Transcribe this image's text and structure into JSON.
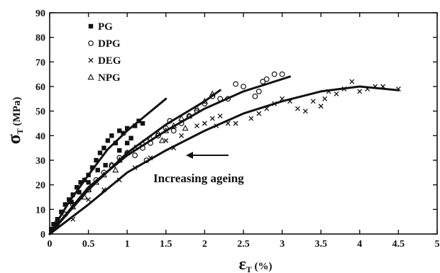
{
  "chart_data": {
    "type": "scatter",
    "xlabel_symbol": "ε",
    "xlabel_sub": "T",
    "xlabel_unit": "(%)",
    "ylabel_symbol": "σ",
    "ylabel_sub": "T",
    "ylabel_unit": "(MPa)",
    "xlim": [
      0,
      5
    ],
    "ylim": [
      0,
      90
    ],
    "xticks": [
      "0",
      "0.5",
      "1",
      "1.5",
      "2",
      "2.5",
      "3",
      "3.5",
      "4",
      "4.5",
      "5"
    ],
    "yticks": [
      "0",
      "10",
      "20",
      "30",
      "40",
      "50",
      "60",
      "70",
      "80",
      "90"
    ],
    "grid": false,
    "legend_position": "top-left",
    "annotation": {
      "text": "Increasing ageing",
      "arrow": "left"
    },
    "series": [
      {
        "name": "PG",
        "marker": "filled-square",
        "points": [
          [
            0.02,
            2
          ],
          [
            0.05,
            4
          ],
          [
            0.1,
            6
          ],
          [
            0.15,
            9
          ],
          [
            0.2,
            12
          ],
          [
            0.25,
            14
          ],
          [
            0.3,
            16
          ],
          [
            0.35,
            19
          ],
          [
            0.4,
            21
          ],
          [
            0.45,
            22
          ],
          [
            0.5,
            24
          ],
          [
            0.55,
            27
          ],
          [
            0.6,
            30
          ],
          [
            0.65,
            33
          ],
          [
            0.7,
            35
          ],
          [
            0.75,
            38
          ],
          [
            0.8,
            40
          ],
          [
            0.85,
            37
          ],
          [
            0.9,
            42
          ],
          [
            0.95,
            41
          ],
          [
            1.0,
            43
          ],
          [
            1.05,
            39
          ],
          [
            1.1,
            44
          ],
          [
            1.15,
            46
          ],
          [
            1.2,
            45
          ],
          [
            0.72,
            28
          ],
          [
            0.62,
            26
          ],
          [
            0.5,
            21
          ],
          [
            0.38,
            17
          ],
          [
            0.28,
            13
          ],
          [
            0.9,
            34
          ],
          [
            1.0,
            37
          ]
        ],
        "fit": [
          [
            0,
            0
          ],
          [
            0.25,
            13
          ],
          [
            0.5,
            24
          ],
          [
            0.75,
            34.5
          ],
          [
            1.0,
            42
          ],
          [
            1.25,
            48.5
          ],
          [
            1.5,
            55
          ]
        ]
      },
      {
        "name": "DPG",
        "marker": "open-circle",
        "points": [
          [
            0.1,
            5
          ],
          [
            0.2,
            8
          ],
          [
            0.3,
            12
          ],
          [
            0.5,
            18
          ],
          [
            0.6,
            22
          ],
          [
            0.7,
            25
          ],
          [
            0.8,
            28
          ],
          [
            0.9,
            31
          ],
          [
            1.0,
            33
          ],
          [
            1.1,
            32
          ],
          [
            1.2,
            35
          ],
          [
            1.3,
            37
          ],
          [
            1.4,
            40
          ],
          [
            1.5,
            43
          ],
          [
            1.6,
            42
          ],
          [
            1.7,
            45
          ],
          [
            1.8,
            48
          ],
          [
            1.9,
            50
          ],
          [
            2.0,
            53
          ],
          [
            2.1,
            56
          ],
          [
            2.2,
            55
          ],
          [
            2.3,
            55
          ],
          [
            2.4,
            61
          ],
          [
            2.5,
            60
          ],
          [
            2.7,
            58
          ],
          [
            2.75,
            62
          ],
          [
            2.8,
            63
          ],
          [
            2.9,
            65
          ],
          [
            3.0,
            65
          ],
          [
            1.25,
            30
          ],
          [
            1.55,
            46
          ],
          [
            2.65,
            56
          ]
        ],
        "fit": [
          [
            0,
            0
          ],
          [
            0.5,
            19
          ],
          [
            1.0,
            32
          ],
          [
            1.5,
            42
          ],
          [
            2.0,
            51
          ],
          [
            2.5,
            58
          ],
          [
            3.1,
            64
          ]
        ]
      },
      {
        "name": "DEG",
        "marker": "cross",
        "points": [
          [
            0.1,
            4
          ],
          [
            0.3,
            6
          ],
          [
            0.5,
            14
          ],
          [
            0.7,
            18
          ],
          [
            0.9,
            22
          ],
          [
            1.1,
            27
          ],
          [
            1.3,
            31
          ],
          [
            1.5,
            38
          ],
          [
            1.6,
            35
          ],
          [
            1.7,
            40
          ],
          [
            1.9,
            44
          ],
          [
            2.0,
            45
          ],
          [
            2.1,
            47
          ],
          [
            2.2,
            48
          ],
          [
            2.3,
            45
          ],
          [
            2.4,
            45
          ],
          [
            2.6,
            47
          ],
          [
            2.7,
            49
          ],
          [
            2.8,
            51
          ],
          [
            2.9,
            53
          ],
          [
            3.0,
            55
          ],
          [
            3.1,
            54
          ],
          [
            3.2,
            51
          ],
          [
            3.3,
            50
          ],
          [
            3.4,
            54
          ],
          [
            3.5,
            52
          ],
          [
            3.6,
            58
          ],
          [
            3.7,
            57
          ],
          [
            3.8,
            59
          ],
          [
            3.9,
            62
          ],
          [
            4.0,
            58
          ],
          [
            4.1,
            59
          ],
          [
            4.2,
            60
          ],
          [
            4.5,
            59
          ],
          [
            2.15,
            44
          ],
          [
            3.55,
            55
          ],
          [
            4.3,
            60
          ]
        ],
        "fit": [
          [
            0,
            0
          ],
          [
            0.5,
            12
          ],
          [
            1.0,
            25
          ],
          [
            1.5,
            34
          ],
          [
            2.0,
            42
          ],
          [
            2.5,
            49
          ],
          [
            3.0,
            54
          ],
          [
            3.5,
            58
          ],
          [
            4.0,
            60
          ],
          [
            4.5,
            58.5
          ]
        ]
      },
      {
        "name": "NPG",
        "marker": "open-triangle",
        "points": [
          [
            0.1,
            4
          ],
          [
            0.3,
            11
          ],
          [
            0.5,
            18
          ],
          [
            0.6,
            21
          ],
          [
            0.7,
            24
          ],
          [
            0.8,
            28
          ],
          [
            0.9,
            30
          ],
          [
            1.0,
            33
          ],
          [
            1.1,
            35
          ],
          [
            1.2,
            37
          ],
          [
            1.3,
            39
          ],
          [
            1.4,
            41
          ],
          [
            1.5,
            42
          ],
          [
            1.6,
            44
          ],
          [
            1.7,
            47
          ],
          [
            1.8,
            48
          ],
          [
            1.9,
            51
          ],
          [
            2.0,
            54
          ],
          [
            2.1,
            57
          ],
          [
            0.45,
            15
          ],
          [
            0.85,
            26
          ],
          [
            1.45,
            38
          ],
          [
            1.75,
            43
          ]
        ],
        "fit": [
          [
            0,
            0
          ],
          [
            0.5,
            18
          ],
          [
            1.0,
            33
          ],
          [
            1.5,
            44.5
          ],
          [
            2.0,
            54
          ],
          [
            2.2,
            58.5
          ]
        ]
      }
    ]
  }
}
